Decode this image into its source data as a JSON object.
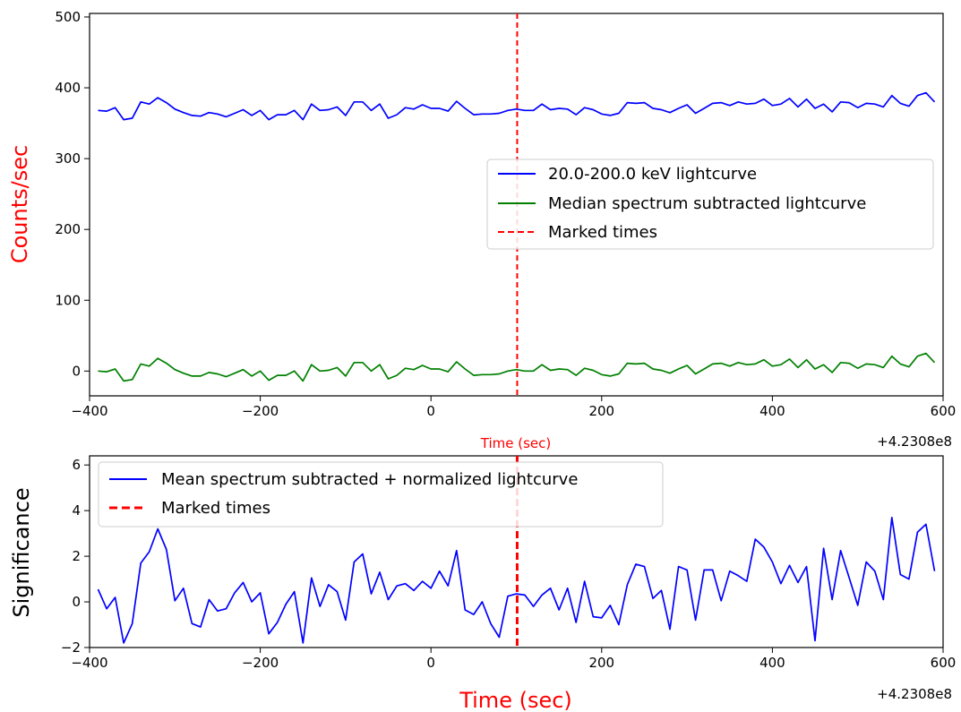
{
  "chart_data": [
    {
      "type": "line",
      "title": "",
      "xlabel": "Time (sec)",
      "ylabel": "Counts/sec",
      "xlim": [
        -400,
        600
      ],
      "ylim": [
        -35,
        505
      ],
      "x_offset_label": "+4.2308e8",
      "x_ticks": [
        -400,
        -200,
        0,
        200,
        400,
        600
      ],
      "y_ticks": [
        0,
        100,
        200,
        300,
        400,
        500
      ],
      "legend_position": "center-right",
      "marked_time": 101,
      "x": [
        -390,
        -380,
        -370,
        -360,
        -350,
        -340,
        -330,
        -320,
        -310,
        -300,
        -290,
        -280,
        -270,
        -260,
        -250,
        -240,
        -230,
        -220,
        -210,
        -200,
        -190,
        -180,
        -170,
        -160,
        -150,
        -140,
        -130,
        -120,
        -110,
        -100,
        -90,
        -80,
        -70,
        -60,
        -50,
        -40,
        -30,
        -20,
        -10,
        0,
        10,
        20,
        30,
        40,
        50,
        60,
        70,
        80,
        90,
        100,
        110,
        120,
        130,
        140,
        150,
        160,
        170,
        180,
        190,
        200,
        210,
        220,
        230,
        240,
        250,
        260,
        270,
        280,
        290,
        300,
        310,
        320,
        330,
        340,
        350,
        360,
        370,
        380,
        390,
        400,
        410,
        420,
        430,
        440,
        450,
        460,
        470,
        480,
        490,
        500,
        510,
        520,
        530,
        540,
        550,
        560,
        570,
        580,
        590
      ],
      "series": [
        {
          "name": "20.0-200.0 keV lightcurve",
          "color": "#0000ff",
          "style": "solid",
          "values": [
            368,
            367,
            372,
            355,
            357,
            380,
            377,
            386,
            379,
            370,
            365,
            361,
            360,
            365,
            363,
            359,
            364,
            369,
            361,
            368,
            355,
            362,
            362,
            368,
            355,
            377,
            368,
            369,
            373,
            361,
            380,
            380,
            368,
            377,
            357,
            362,
            372,
            370,
            376,
            371,
            371,
            367,
            381,
            371,
            362,
            363,
            363,
            364,
            368,
            370,
            368,
            368,
            377,
            369,
            371,
            370,
            362,
            372,
            369,
            363,
            361,
            364,
            379,
            378,
            379,
            371,
            369,
            365,
            371,
            376,
            364,
            371,
            378,
            379,
            375,
            380,
            377,
            378,
            384,
            375,
            377,
            385,
            373,
            384,
            371,
            377,
            366,
            380,
            379,
            372,
            378,
            377,
            373,
            389,
            378,
            374,
            389,
            393,
            380
          ]
        },
        {
          "name": "Median spectrum subtracted lightcurve",
          "color": "#008000",
          "style": "solid",
          "values": [
            0,
            -1,
            3,
            -14,
            -12,
            10,
            7,
            18,
            11,
            2,
            -3,
            -7,
            -7,
            -2,
            -4,
            -8,
            -3,
            2,
            -7,
            0,
            -13,
            -6,
            -6,
            0,
            -14,
            9,
            0,
            1,
            5,
            -7,
            12,
            12,
            0,
            9,
            -11,
            -6,
            4,
            2,
            8,
            3,
            3,
            -1,
            13,
            3,
            -6,
            -5,
            -5,
            -4,
            0,
            2,
            0,
            0,
            9,
            1,
            3,
            2,
            -6,
            4,
            1,
            -5,
            -7,
            -4,
            11,
            10,
            11,
            3,
            1,
            -3,
            3,
            8,
            -4,
            3,
            10,
            11,
            7,
            12,
            9,
            10,
            16,
            7,
            9,
            17,
            5,
            16,
            3,
            9,
            -2,
            12,
            11,
            4,
            10,
            9,
            5,
            21,
            10,
            6,
            21,
            25,
            12
          ]
        }
      ],
      "marker_series": {
        "name": "Marked times",
        "color": "#ff0000",
        "style": "dashed"
      }
    },
    {
      "type": "line",
      "title": "",
      "xlabel": "Time (sec)",
      "ylabel": "Significance",
      "xlim": [
        -400,
        600
      ],
      "ylim": [
        -2,
        6.4
      ],
      "x_offset_label": "+4.2308e8",
      "x_ticks": [
        -400,
        -200,
        0,
        200,
        400,
        600
      ],
      "y_ticks": [
        -2,
        0,
        2,
        4,
        6
      ],
      "legend_position": "top-left",
      "marked_time": 101,
      "x": [
        -390,
        -380,
        -370,
        -360,
        -350,
        -340,
        -330,
        -320,
        -310,
        -300,
        -290,
        -280,
        -270,
        -260,
        -250,
        -240,
        -230,
        -220,
        -210,
        -200,
        -190,
        -180,
        -170,
        -160,
        -150,
        -140,
        -130,
        -120,
        -110,
        -100,
        -90,
        -80,
        -70,
        -60,
        -50,
        -40,
        -30,
        -20,
        -10,
        0,
        10,
        20,
        30,
        40,
        50,
        60,
        70,
        80,
        90,
        100,
        110,
        120,
        130,
        140,
        150,
        160,
        170,
        180,
        190,
        200,
        210,
        220,
        230,
        240,
        250,
        260,
        270,
        280,
        290,
        300,
        310,
        320,
        330,
        340,
        350,
        360,
        370,
        380,
        390,
        400,
        410,
        420,
        430,
        440,
        450,
        460,
        470,
        480,
        490,
        500,
        510,
        520,
        530,
        540,
        550,
        560,
        570,
        580,
        590
      ],
      "series": [
        {
          "name": "Mean spectrum subtracted + normalized lightcurve",
          "color": "#0000ff",
          "style": "solid",
          "values": [
            0.55,
            -0.3,
            0.2,
            -1.8,
            -0.95,
            1.7,
            2.2,
            3.2,
            2.3,
            0.05,
            0.6,
            -0.95,
            -1.1,
            0.1,
            -0.4,
            -0.3,
            0.4,
            0.85,
            0.0,
            0.4,
            -1.4,
            -0.9,
            -0.1,
            0.45,
            -1.8,
            1.05,
            -0.2,
            0.75,
            0.45,
            -0.8,
            1.75,
            2.1,
            0.35,
            1.3,
            0.1,
            0.7,
            0.8,
            0.5,
            0.9,
            0.6,
            1.35,
            0.7,
            2.25,
            -0.35,
            -0.55,
            0.0,
            -0.95,
            -1.55,
            0.25,
            0.35,
            0.3,
            -0.2,
            0.3,
            0.6,
            -0.35,
            0.6,
            -0.9,
            0.9,
            -0.65,
            -0.7,
            -0.15,
            -1.0,
            0.75,
            1.65,
            1.55,
            0.15,
            0.5,
            -1.2,
            1.55,
            1.4,
            -0.8,
            1.4,
            1.4,
            0.05,
            1.35,
            1.15,
            0.9,
            2.75,
            2.4,
            1.75,
            0.8,
            1.6,
            0.85,
            1.55,
            -1.7,
            2.35,
            0.1,
            2.25,
            1.05,
            -0.15,
            1.75,
            1.35,
            0.1,
            3.7,
            1.2,
            1.0,
            3.05,
            3.4,
            1.35
          ]
        }
      ],
      "marker_series": {
        "name": "Marked times",
        "color": "#ff0000",
        "style": "dashed"
      }
    }
  ]
}
